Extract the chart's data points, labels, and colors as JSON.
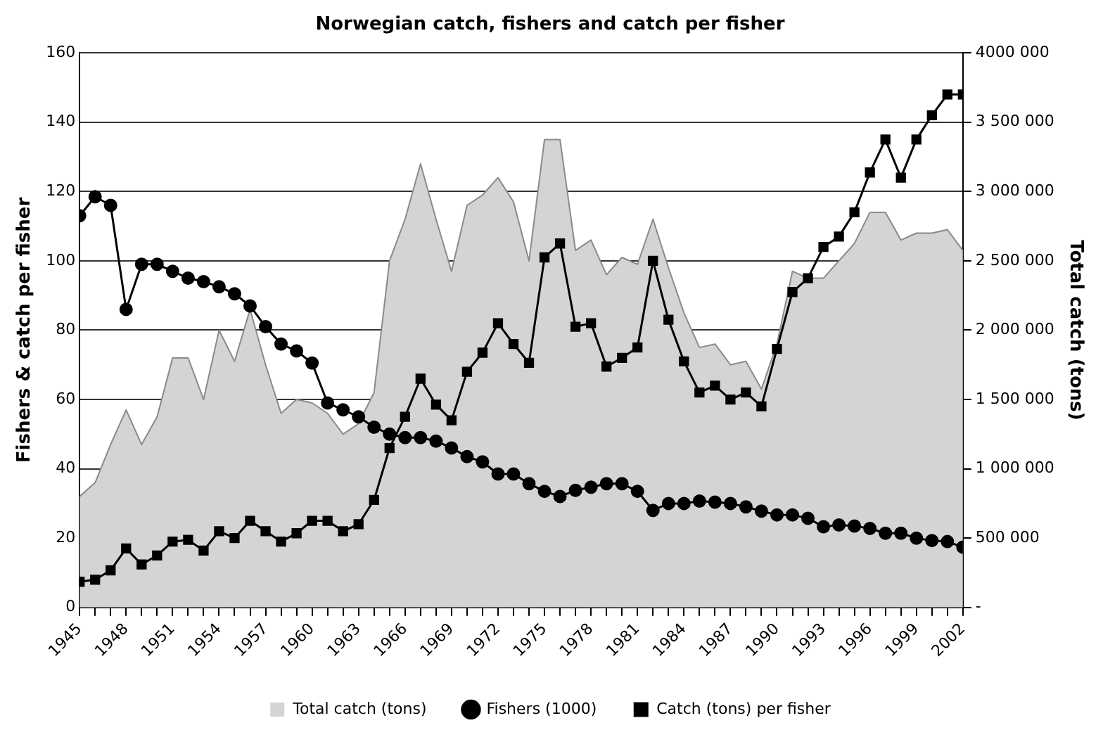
{
  "chart_data": {
    "type": "line",
    "title": "Norwegian catch, fishers and catch per fisher",
    "ylabel": "Fishers & catch per fisher",
    "y2label": "Total catch (tons)",
    "x": [
      1945,
      1946,
      1947,
      1948,
      1949,
      1950,
      1951,
      1952,
      1953,
      1954,
      1955,
      1956,
      1957,
      1958,
      1959,
      1960,
      1961,
      1962,
      1963,
      1964,
      1965,
      1966,
      1967,
      1968,
      1969,
      1970,
      1971,
      1972,
      1973,
      1974,
      1975,
      1976,
      1977,
      1978,
      1979,
      1980,
      1981,
      1982,
      1983,
      1984,
      1985,
      1986,
      1987,
      1988,
      1989,
      1990,
      1991,
      1992,
      1993,
      1994,
      1995,
      1996,
      1997,
      1998,
      1999,
      2000,
      2001,
      2002
    ],
    "xlim": [
      1945,
      2002
    ],
    "xticks": [
      1945,
      {
        "value": 1946,
        "label": null
      },
      {
        "value": 1947,
        "label": null
      },
      1948,
      {
        "value": 1949,
        "label": null
      },
      {
        "value": 1950,
        "label": null
      },
      1951,
      {
        "value": 1952,
        "label": null
      },
      {
        "value": 1953,
        "label": null
      },
      1954,
      {
        "value": 1955,
        "label": null
      },
      {
        "value": 1956,
        "label": null
      },
      1957,
      {
        "value": 1958,
        "label": null
      },
      {
        "value": 1959,
        "label": null
      },
      1960,
      {
        "value": 1961,
        "label": null
      },
      {
        "value": 1962,
        "label": null
      },
      1963,
      {
        "value": 1964,
        "label": null
      },
      {
        "value": 1965,
        "label": null
      },
      1966,
      {
        "value": 1967,
        "label": null
      },
      {
        "value": 1968,
        "label": null
      },
      1969,
      {
        "value": 1970,
        "label": null
      },
      {
        "value": 1971,
        "label": null
      },
      1972,
      {
        "value": 1973,
        "label": null
      },
      {
        "value": 1974,
        "label": null
      },
      1975,
      {
        "value": 1976,
        "label": null
      },
      {
        "value": 1977,
        "label": null
      },
      1978,
      {
        "value": 1979,
        "label": null
      },
      {
        "value": 1980,
        "label": null
      },
      1981,
      {
        "value": 1982,
        "label": null
      },
      {
        "value": 1983,
        "label": null
      },
      1984,
      {
        "value": 1985,
        "label": null
      },
      {
        "value": 1986,
        "label": null
      },
      1987,
      {
        "value": 1988,
        "label": null
      },
      {
        "value": 1989,
        "label": null
      },
      1990,
      {
        "value": 1991,
        "label": null
      },
      {
        "value": 1992,
        "label": null
      },
      1993,
      {
        "value": 1994,
        "label": null
      },
      {
        "value": 1995,
        "label": null
      },
      1996,
      {
        "value": 1997,
        "label": null
      },
      {
        "value": 1998,
        "label": null
      },
      1999,
      {
        "value": 2000,
        "label": null
      },
      {
        "value": 2001,
        "label": null
      },
      2002
    ],
    "ylim": [
      0,
      160
    ],
    "yticks": [
      0,
      20,
      40,
      60,
      80,
      100,
      120,
      140,
      160
    ],
    "y2lim": [
      0,
      4000000
    ],
    "y2ticks": [
      {
        "value": 0,
        "label": "-"
      },
      {
        "value": 500000,
        "label": "500 000"
      },
      {
        "value": 1000000,
        "label": "1 000 000"
      },
      {
        "value": 1500000,
        "label": "1 500 000"
      },
      {
        "value": 2000000,
        "label": "2 000 000"
      },
      {
        "value": 2500000,
        "label": "2 500 000"
      },
      {
        "value": 3000000,
        "label": "3 000 000"
      },
      {
        "value": 3500000,
        "label": "3 500 000"
      },
      {
        "value": 4000000,
        "label": "4000 000"
      }
    ],
    "grid": "y",
    "legend": "bottom",
    "series": [
      {
        "name": "Total catch (tons)",
        "type": "area",
        "axis": "y2",
        "color": "#d4d4d4",
        "marker": "none",
        "values": [
          800000,
          900000,
          1175000,
          1425000,
          1175000,
          1375000,
          1800000,
          1800000,
          1500000,
          2000000,
          1775000,
          2150000,
          1750000,
          1400000,
          1500000,
          1475000,
          1400000,
          1250000,
          1325000,
          1550000,
          2500000,
          2800000,
          3200000,
          2800000,
          2425000,
          2900000,
          2975000,
          3100000,
          2925000,
          2500000,
          3375000,
          3375000,
          2575000,
          2650000,
          2400000,
          2525000,
          2475000,
          2800000,
          2450000,
          2125000,
          1875000,
          1900000,
          1750000,
          1775000,
          1575000,
          1900000,
          2425000,
          2375000,
          2375000,
          2500000,
          2625000,
          2850000,
          2850000,
          2650000,
          2700000,
          2700000,
          2725000,
          2575000
        ]
      },
      {
        "name": "Fishers (1000)",
        "color": "#000000",
        "marker": "circle",
        "values": [
          113,
          118.5,
          116,
          86,
          99,
          99,
          97,
          95,
          94,
          92.5,
          90.5,
          87,
          81,
          76,
          74,
          70.5,
          59,
          57,
          55,
          52,
          50,
          49,
          49,
          48,
          46,
          43.5,
          42,
          38.5,
          38.5,
          35.7,
          33.5,
          32,
          33.8,
          34.7,
          35.7,
          35.7,
          33.5,
          28,
          30,
          30,
          30.7,
          30.4,
          30,
          29,
          27.8,
          26.7,
          26.7,
          25.7,
          23.3,
          23.8,
          23.5,
          22.8,
          21.4,
          21.4,
          20,
          19.3,
          19,
          17.4
        ]
      },
      {
        "name": "Catch (tons) per fisher",
        "color": "#000000",
        "marker": "square",
        "values": [
          7.4,
          8,
          10.7,
          17,
          12.4,
          15,
          19,
          19.5,
          16.4,
          22,
          20,
          25,
          22,
          19,
          21.4,
          25,
          25,
          22,
          24,
          31,
          46,
          55,
          66,
          58.5,
          54,
          68,
          73.5,
          82,
          76,
          70.6,
          101,
          105,
          81,
          82,
          69.5,
          72,
          75,
          100,
          83,
          71,
          62,
          64,
          60,
          62,
          58,
          74.6,
          91,
          95,
          104,
          107,
          114,
          125.5,
          135,
          124,
          135,
          142,
          148,
          148
        ]
      }
    ]
  }
}
